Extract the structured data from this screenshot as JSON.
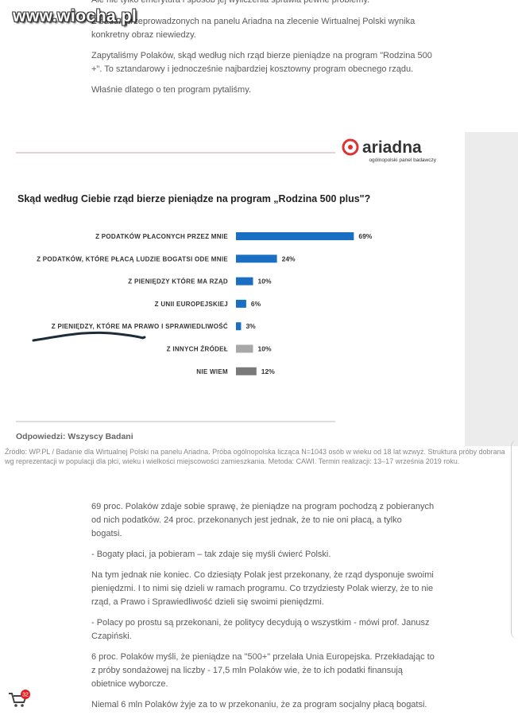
{
  "article_top": {
    "paragraphs": [
      "Ale nie tylko emerytura i sposób jej wyliczenia sprawia pewne problemy.",
      "Z badań przeprowadzonych na panelu Ariadna na zlecenie Wirtualnej Polski wynika konkretny obraz niewiedzy.",
      "Zapytaliśmy Polaków, skąd według nich rząd bierze pieniądze na program \"Rodzina 500 +\". To sztandarowy i jednocześnie najbardziej kosztowny program obecnego rządu.",
      "Właśnie dlatego o ten program pytaliśmy."
    ]
  },
  "watermark": "www.wiocha.pl",
  "logo": {
    "name": "ariadna",
    "tagline": "ogólnopolski panel badawczy"
  },
  "chart_data": {
    "type": "bar",
    "orientation": "horizontal",
    "title": "Skąd według Ciebie rząd bierze pieniądze na program „Rodzina 500 plus\"?",
    "categories": [
      "Z PODATKÓW PŁACONYCH PRZEZ MNIE",
      "Z PODATKÓW, KTÓRE PŁACĄ LUDZIE BOGATSI ODE MNIE",
      "Z PIENIĘDZY KTÓRE MA RZĄD",
      "Z UNII EUROPEJSKIEJ",
      "Z PIENIĘDZY, KTÓRE MA PRAWO I SPRAWIEDLIWOŚĆ",
      "Z INNYCH ŹRÓDEŁ",
      "NIE WIEM"
    ],
    "values": [
      69,
      24,
      10,
      6,
      3,
      10,
      12
    ],
    "value_labels": [
      "69%",
      "24%",
      "10%",
      "6%",
      "3%",
      "10%",
      "12%"
    ],
    "colors": [
      "#1b6fc2",
      "#1b6fc2",
      "#1b6fc2",
      "#1b6fc2",
      "#1b6fc2",
      "#a8a8a8",
      "#7a7a7a"
    ],
    "footnote": "Odpowiedzi: Wszyscy Badani"
  },
  "source": "Źródło: WP.PL / Badanie dla Wirtualnej Polski na panelu Ariadna. Próba ogólnopolska licząca N=1043 osób w wieku od 18 lat wzwyż. Struktura próby dobrana wg reprezentacji w populacji dla płci, wieku i wielkości miejscowości zamieszkania. Metoda: CAWI. Termin realizacji: 13–17 września 2019 roku.",
  "article_bottom": {
    "paragraphs": [
      "69 proc. Polaków zdaje sobie sprawę, że pieniądze na program pochodzą z pobieranych od nich podatków. 24 proc. przekonanych jest jednak, że to nie oni płacą, a tylko bogatsi.",
      "- Bogaty płaci, ja pobieram – tak zdaje się myśli ćwierć Polski.",
      "Na tym jednak nie koniec. Co dziesiąty Polak jest przekonany, że rząd dysponuje swoimi pieniędzmi. I to nimi się dzieli w ramach programu. Co trzydziesty Polak wierzy, że to nie rząd, a Prawo i Sprawiedliwość dzieli się swoimi pieniędzmi.",
      "- Polacy po prostu są przekonani, że politycy decydują o wszystkim - mówi prof. Janusz Czapiński.",
      "6 proc. Polaków myśli, że pieniądze na \"500+\" przelała Unia Europejska. Przekładając to z próby sondażowej na liczby - 17,5 mln Polaków wie, że to ich podatki finansują obietnice wyborcze.",
      "Niemal 6 mln Polaków żyje za to w przekonaniu, że za program socjalny płacą bogatsi."
    ]
  },
  "cart_badge": "32"
}
